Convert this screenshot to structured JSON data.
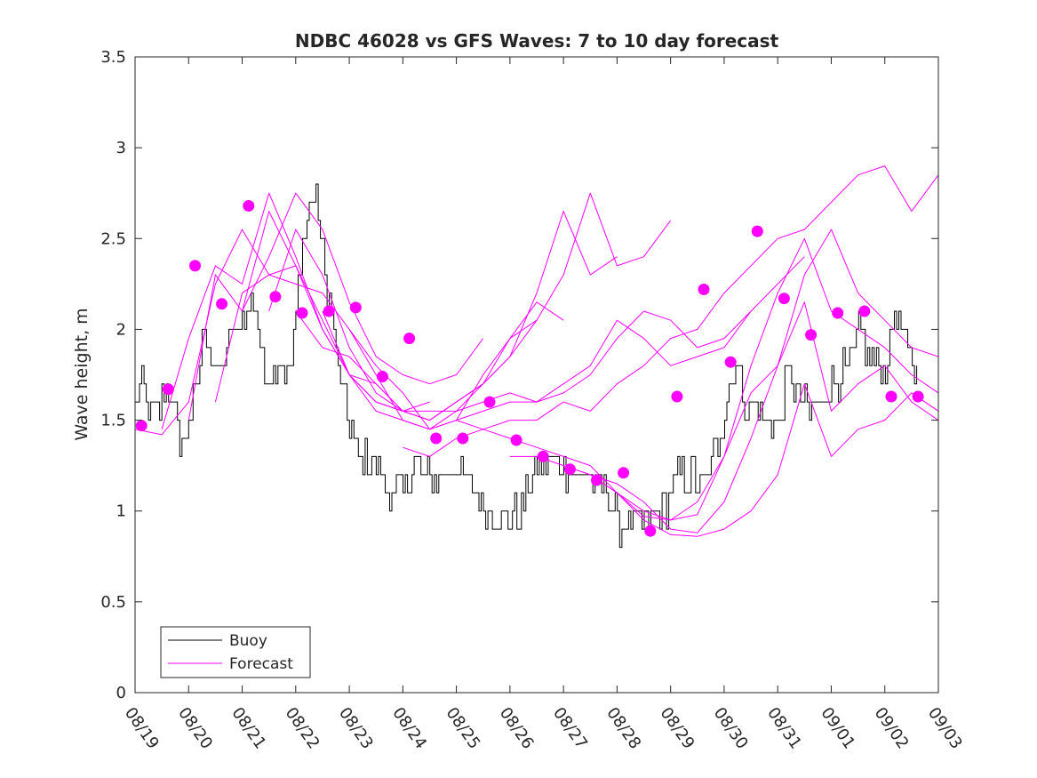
{
  "chart_data": {
    "type": "line",
    "title": "NDBC 46028 vs GFS Waves: 7 to 10 day forecast",
    "xlabel": "",
    "ylabel": "Wave height, m",
    "xlim": [
      0,
      15
    ],
    "ylim": [
      0,
      3.5
    ],
    "x_tick_labels": [
      "08/19",
      "08/20",
      "08/21",
      "08/22",
      "08/23",
      "08/24",
      "08/25",
      "08/26",
      "08/27",
      "08/28",
      "08/29",
      "08/30",
      "08/31",
      "09/01",
      "09/02",
      "09/03"
    ],
    "y_ticks": [
      0,
      0.5,
      1,
      1.5,
      2,
      2.5,
      3,
      3.5
    ],
    "y_tick_labels": [
      "0",
      "0.5",
      "1",
      "1.5",
      "2",
      "2.5",
      "3",
      "3.5"
    ],
    "legend": {
      "position": "bottom-left",
      "entries": [
        "Buoy",
        "Forecast"
      ]
    },
    "colors": {
      "buoy": "#000000",
      "forecast": "#ff00ff",
      "axis": "#262626"
    },
    "series": [
      {
        "name": "Buoy",
        "style": "line",
        "x_step_days": 0.0417,
        "anchors_x": [
          0,
          0.1,
          0.15,
          0.2,
          0.3,
          0.4,
          0.5,
          0.6,
          0.7,
          0.8,
          0.9,
          1.0,
          1.1,
          1.2,
          1.3,
          1.4,
          1.5,
          1.6,
          1.7,
          1.8,
          1.9,
          2.0,
          2.1,
          2.2,
          2.3,
          2.4,
          2.5,
          2.6,
          2.7,
          2.8,
          2.9,
          3.0,
          3.1,
          3.2,
          3.3,
          3.4,
          3.5,
          3.6,
          3.7,
          3.8,
          3.9,
          4.0,
          4.2,
          4.4,
          4.6,
          4.8,
          5.0,
          5.2,
          5.4,
          5.6,
          5.8,
          6.0,
          6.2,
          6.4,
          6.6,
          6.8,
          7.0,
          7.2,
          7.4,
          7.6,
          7.8,
          8.0,
          8.2,
          8.4,
          8.6,
          8.8,
          9.0,
          9.2,
          9.4,
          9.6,
          9.8,
          10.0,
          10.2,
          10.4,
          10.6,
          10.8,
          11.0,
          11.2,
          11.3,
          11.4,
          11.6,
          11.8,
          12.0,
          12.2,
          12.4,
          12.6,
          12.8,
          13.0,
          13.2,
          13.4,
          13.5,
          13.6,
          13.7,
          13.8,
          14.0,
          14.2,
          14.4,
          14.6
        ],
        "anchors_y": [
          1.55,
          1.65,
          1.75,
          1.6,
          1.5,
          1.55,
          1.6,
          1.65,
          1.6,
          1.45,
          1.35,
          1.5,
          1.6,
          1.8,
          2.05,
          1.9,
          1.75,
          1.8,
          1.85,
          2.0,
          1.95,
          2.1,
          2.05,
          2.2,
          2.0,
          1.75,
          1.8,
          1.75,
          1.9,
          1.8,
          1.75,
          2.1,
          2.4,
          2.6,
          2.75,
          2.75,
          2.4,
          2.2,
          2.0,
          1.75,
          1.6,
          1.5,
          1.3,
          1.3,
          1.2,
          1.1,
          1.1,
          1.25,
          1.2,
          1.15,
          1.2,
          1.25,
          1.15,
          1.05,
          1.0,
          0.95,
          0.95,
          1.0,
          1.2,
          1.25,
          1.3,
          1.25,
          1.2,
          1.2,
          1.15,
          1.15,
          0.95,
          0.92,
          0.95,
          0.92,
          0.95,
          1.1,
          1.2,
          1.2,
          1.15,
          1.3,
          1.5,
          1.85,
          1.75,
          1.6,
          1.55,
          1.5,
          1.45,
          1.75,
          1.6,
          1.55,
          1.6,
          1.7,
          1.75,
          1.8,
          2.0,
          1.95,
          1.85,
          1.8,
          1.75,
          2.1,
          1.9,
          1.75
        ],
        "jitter": 0.1
      },
      {
        "name": "Forecast run 1",
        "style": "line",
        "x": [
          0,
          0.5,
          1,
          1.5,
          2,
          2.5,
          3,
          3.5,
          4,
          4.5,
          5
        ],
        "y": [
          1.45,
          1.42,
          1.6,
          2.25,
          2.55,
          2.3,
          2.35,
          2.05,
          1.75,
          1.6,
          1.55
        ]
      },
      {
        "name": "Forecast run 2",
        "style": "line",
        "x": [
          0.5,
          1,
          1.5,
          2,
          2.5,
          3,
          3.5,
          4,
          4.5,
          5,
          5.5
        ],
        "y": [
          1.45,
          1.95,
          2.35,
          2.25,
          2.75,
          2.4,
          2.0,
          1.75,
          1.7,
          1.55,
          1.6
        ]
      },
      {
        "name": "Forecast run 3",
        "style": "line",
        "x": [
          1,
          1.5,
          2,
          2.5,
          3,
          3.5,
          4,
          4.5,
          5,
          5.5,
          6,
          6.5
        ],
        "y": [
          1.5,
          2.3,
          2.1,
          2.4,
          2.75,
          2.55,
          2.15,
          1.85,
          1.75,
          1.7,
          1.75,
          1.95
        ]
      },
      {
        "name": "Forecast run 4",
        "style": "line",
        "x": [
          1.5,
          2,
          2.5,
          3,
          3.5,
          4,
          4.5,
          5,
          5.5,
          6,
          6.5,
          7,
          7.5
        ],
        "y": [
          1.6,
          2.2,
          2.3,
          2.25,
          2.2,
          2.0,
          1.8,
          1.65,
          1.45,
          1.5,
          1.75,
          1.95,
          2.05
        ]
      },
      {
        "name": "Forecast run 5",
        "style": "line",
        "x": [
          2,
          2.5,
          3,
          3.5,
          4,
          4.5,
          5,
          5.5,
          6,
          6.5,
          7,
          7.5,
          8
        ],
        "y": [
          2.1,
          2.65,
          2.35,
          2.0,
          1.75,
          1.55,
          1.5,
          1.45,
          1.55,
          1.7,
          1.95,
          2.15,
          2.05
        ]
      },
      {
        "name": "Forecast run 6",
        "style": "line",
        "x": [
          2.5,
          3,
          3.5,
          4,
          4.5,
          5,
          5.5,
          6,
          6.5,
          7,
          7.5,
          8,
          8.5,
          9
        ],
        "y": [
          2.1,
          2.55,
          2.3,
          1.9,
          1.65,
          1.55,
          1.5,
          1.6,
          1.7,
          1.85,
          2.2,
          2.65,
          2.3,
          2.4
        ]
      },
      {
        "name": "Forecast run 7",
        "style": "line",
        "x": [
          3,
          3.5,
          4,
          4.5,
          5,
          5.5,
          6,
          6.5,
          7,
          7.5,
          8,
          8.5,
          9,
          9.5,
          10
        ],
        "y": [
          2.1,
          1.9,
          1.85,
          1.7,
          1.55,
          1.5,
          1.6,
          1.7,
          1.85,
          2.05,
          2.3,
          2.75,
          2.35,
          2.4,
          2.6
        ]
      },
      {
        "name": "Forecast run 8",
        "style": "line",
        "x": [
          3.5,
          4,
          4.5,
          5,
          5.5,
          6,
          6.5,
          7,
          7.5,
          8,
          8.5,
          9,
          9.5,
          10,
          10.5,
          11,
          11.5,
          12,
          12.5
        ],
        "y": [
          2.1,
          1.75,
          1.6,
          1.55,
          1.55,
          1.55,
          1.6,
          1.65,
          1.6,
          1.7,
          1.8,
          2.05,
          1.95,
          1.8,
          1.85,
          1.9,
          2.1,
          2.25,
          2.4
        ]
      },
      {
        "name": "Forecast run 9",
        "style": "line",
        "x": [
          4,
          4.5,
          5,
          5.5,
          6,
          6.5,
          7,
          7.5,
          8,
          8.5,
          9,
          9.5,
          10,
          10.5,
          11,
          11.5
        ],
        "y": [
          2.0,
          1.75,
          1.5,
          1.45,
          1.5,
          1.55,
          1.6,
          1.6,
          1.65,
          1.75,
          1.95,
          2.1,
          2.05,
          1.9,
          1.95,
          2.1
        ]
      },
      {
        "name": "Forecast run 10",
        "style": "line",
        "x": [
          5,
          5.5,
          6,
          6.5,
          7,
          7.5,
          8,
          8.5,
          9,
          9.5,
          10,
          10.5,
          11,
          11.5,
          12,
          12.5,
          13,
          13.5,
          14,
          14.5,
          15
        ],
        "y": [
          1.35,
          1.3,
          1.4,
          1.45,
          1.5,
          1.5,
          1.6,
          1.55,
          1.7,
          1.8,
          1.95,
          2.0,
          2.2,
          2.35,
          2.5,
          2.55,
          2.7,
          2.85,
          2.9,
          2.65,
          2.85
        ]
      },
      {
        "name": "Forecast run 11",
        "style": "line",
        "x": [
          6,
          6.5,
          7,
          7.5,
          8,
          8.5,
          9,
          9.5,
          10,
          10.5,
          11,
          11.5,
          12,
          12.5,
          13,
          13.5,
          14,
          14.5,
          15
        ],
        "y": [
          1.5,
          1.45,
          1.4,
          1.35,
          1.3,
          1.25,
          1.1,
          1.0,
          0.95,
          1.05,
          1.3,
          1.65,
          1.8,
          2.3,
          2.55,
          2.2,
          2.05,
          1.9,
          1.85
        ]
      },
      {
        "name": "Forecast run 12",
        "style": "line",
        "x": [
          7,
          7.5,
          8,
          8.5,
          9,
          9.5,
          10,
          10.5,
          11,
          11.5,
          12,
          12.5,
          13,
          13.5,
          14,
          14.5,
          15
        ],
        "y": [
          1.3,
          1.3,
          1.25,
          1.2,
          1.1,
          0.97,
          0.95,
          0.98,
          1.3,
          1.8,
          2.2,
          2.5,
          2.1,
          2.0,
          1.9,
          1.75,
          1.65
        ]
      },
      {
        "name": "Forecast run 13",
        "style": "line",
        "x": [
          8,
          8.5,
          9,
          9.5,
          10,
          10.5,
          11,
          11.5,
          12,
          12.5,
          13,
          13.5,
          14,
          14.5,
          15
        ],
        "y": [
          1.25,
          1.2,
          1.15,
          1.05,
          0.9,
          0.88,
          1.05,
          1.4,
          1.8,
          2.15,
          1.55,
          1.7,
          1.8,
          1.6,
          1.5
        ]
      },
      {
        "name": "Forecast run 14",
        "style": "line",
        "x": [
          9,
          9.5,
          10,
          10.5,
          11,
          11.5,
          12,
          12.5,
          13,
          13.5,
          14,
          14.5,
          15
        ],
        "y": [
          1.1,
          0.95,
          0.87,
          0.86,
          0.9,
          1.0,
          1.2,
          1.7,
          1.3,
          1.45,
          1.5,
          1.65,
          1.55
        ]
      },
      {
        "name": "Forecast markers",
        "style": "markers",
        "x": [
          0.12,
          0.62,
          1.12,
          1.62,
          2.12,
          2.62,
          3.12,
          3.62,
          4.12,
          4.62,
          5.12,
          5.62,
          6.12,
          6.62,
          7.12,
          7.62,
          8.12,
          8.62,
          9.12,
          9.62,
          10.12,
          10.62,
          11.12,
          11.62,
          12.12,
          12.62,
          13.12,
          13.62,
          14.12,
          14.62
        ],
        "y": [
          1.47,
          1.67,
          2.35,
          2.14,
          2.68,
          2.18,
          2.09,
          2.1,
          2.12,
          1.74,
          1.95,
          1.4,
          1.4,
          1.6,
          1.39,
          1.3,
          1.23,
          1.17,
          1.21,
          0.89,
          1.63,
          2.22,
          1.82,
          2.54,
          2.17,
          1.97,
          2.09,
          2.1,
          1.63,
          1.63
        ]
      }
    ]
  }
}
